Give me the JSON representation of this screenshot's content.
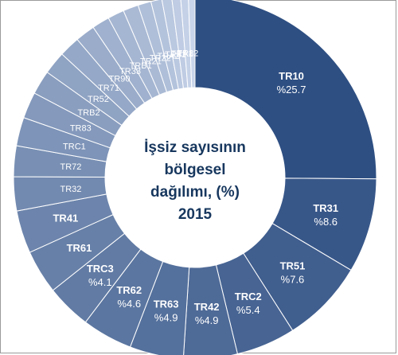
{
  "chart_data": {
    "type": "pie",
    "title_lines": [
      "İşsiz sayısının",
      "bölgesel",
      "dağılımı, (%)",
      "2015"
    ],
    "slices": [
      {
        "label": "TR10",
        "value": 25.7,
        "value_label": "%25.7"
      },
      {
        "label": "TR31",
        "value": 8.6,
        "value_label": "%8.6"
      },
      {
        "label": "TR51",
        "value": 7.6,
        "value_label": "%7.6"
      },
      {
        "label": "TRC2",
        "value": 5.4,
        "value_label": "%5.4"
      },
      {
        "label": "TR42",
        "value": 4.9,
        "value_label": "%4.9"
      },
      {
        "label": "TR63",
        "value": 4.9,
        "value_label": "%4.9"
      },
      {
        "label": "TR62",
        "value": 4.6,
        "value_label": "%4.6"
      },
      {
        "label": "TRC3",
        "value": 4.1,
        "value_label": "%4.1"
      },
      {
        "label": "TR61",
        "value": 4.0
      },
      {
        "label": "TR41",
        "value": 3.9
      },
      {
        "label": "TR32",
        "value": 3.1
      },
      {
        "label": "TR72",
        "value": 2.8
      },
      {
        "label": "TRC1",
        "value": 2.6
      },
      {
        "label": "TR83",
        "value": 2.4
      },
      {
        "label": "TRB2",
        "value": 2.2
      },
      {
        "label": "TR52",
        "value": 2.1
      },
      {
        "label": "TR71",
        "value": 1.9
      },
      {
        "label": "TR90",
        "value": 1.8
      },
      {
        "label": "TR33",
        "value": 1.6
      },
      {
        "label": "TRB1",
        "value": 1.5
      },
      {
        "label": "TR21",
        "value": 1.4
      },
      {
        "label": "TR22",
        "value": 1.2
      },
      {
        "label": "TRA2",
        "value": 1.0
      },
      {
        "label": "TR81",
        "value": 0.9
      },
      {
        "label": "TRA1",
        "value": 0.8
      },
      {
        "label": "TR82",
        "value": 0.7
      },
      {
        "label": "",
        "value": 0.6
      }
    ],
    "colors": {
      "dark": "#2e4f82",
      "light": "#c9d5ea",
      "edge": "#ffffff",
      "title": "#17375e"
    }
  }
}
